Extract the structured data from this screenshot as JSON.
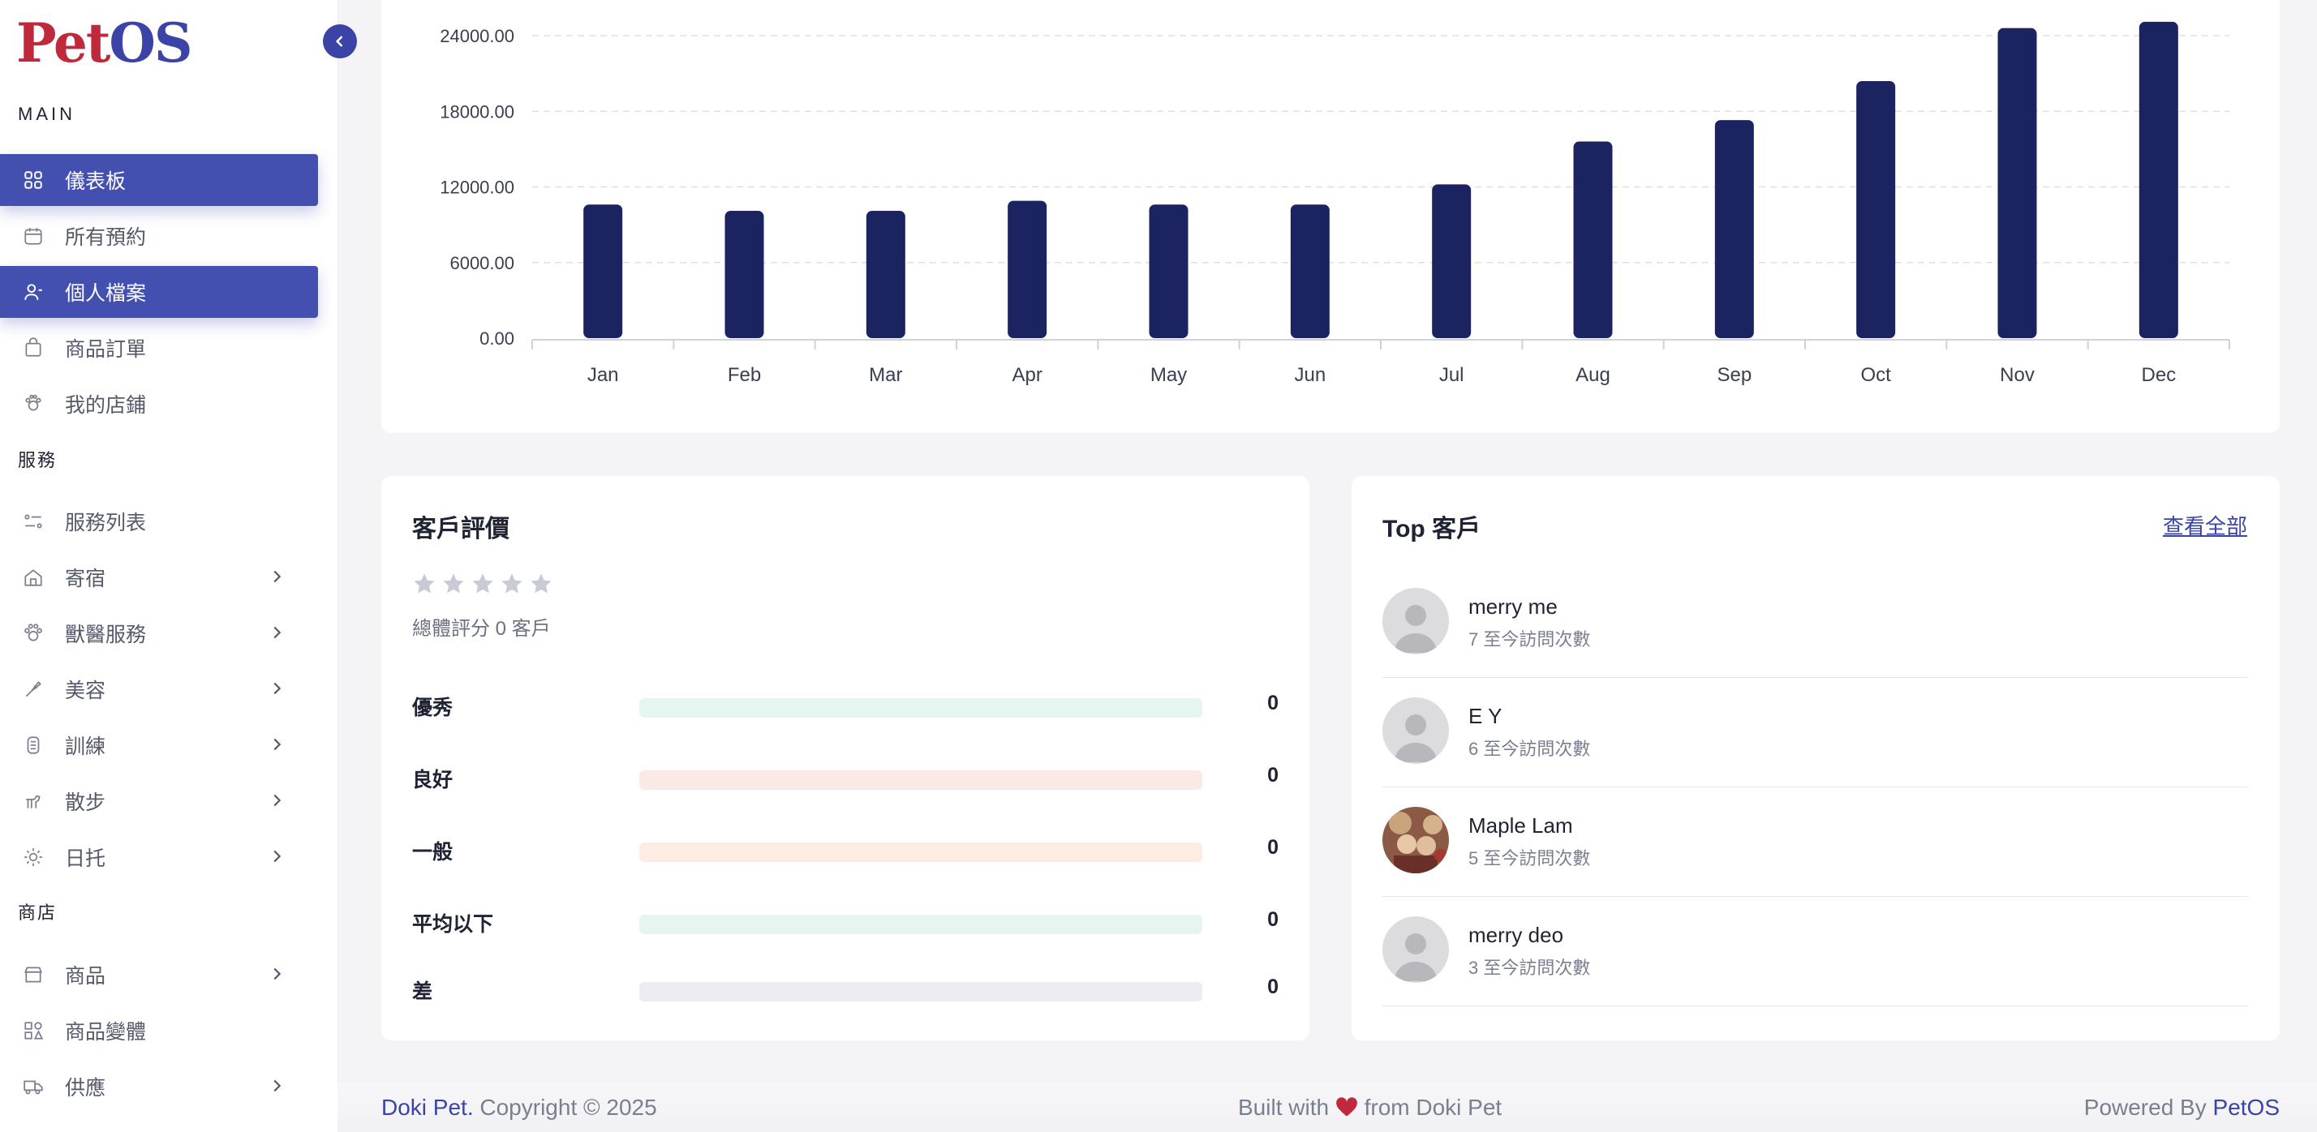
{
  "brand": {
    "logo_pet": "Pet",
    "logo_os": "OS"
  },
  "colors": {
    "accent": "#3b44a6",
    "active_nav": "#4350b0",
    "bar": "#1b2360",
    "heart": "#c0283b"
  },
  "sidebar": {
    "main_label": "MAIN",
    "services_label": "服務",
    "shop_label": "商店",
    "items": [
      {
        "label": "儀表板",
        "icon": "dashboard-grid-icon",
        "active": true
      },
      {
        "label": "所有預約",
        "icon": "calendar-icon",
        "active": false
      },
      {
        "label": "個人檔案",
        "icon": "user-icon",
        "active": true
      },
      {
        "label": "商品訂單",
        "icon": "shopping-bag-icon",
        "active": false
      },
      {
        "label": "我的店鋪",
        "icon": "paw-icon",
        "active": false
      },
      {
        "label": "服務列表",
        "icon": "service-list-icon",
        "active": false
      },
      {
        "label": "寄宿",
        "icon": "home-icon",
        "active": false
      },
      {
        "label": "獸醫服務",
        "icon": "vet-icon",
        "active": false
      },
      {
        "label": "美容",
        "icon": "grooming-icon",
        "active": false
      },
      {
        "label": "訓練",
        "icon": "training-icon",
        "active": false
      },
      {
        "label": "散步",
        "icon": "walking-dog-icon",
        "active": false
      },
      {
        "label": "日托",
        "icon": "daycare-icon",
        "active": false
      },
      {
        "label": "商品",
        "icon": "store-icon",
        "active": false
      },
      {
        "label": "商品變體",
        "icon": "variants-icon",
        "active": false
      },
      {
        "label": "供應",
        "icon": "truck-icon",
        "active": false
      }
    ]
  },
  "chart_data": {
    "type": "bar",
    "categories": [
      "Jan",
      "Feb",
      "Mar",
      "Apr",
      "May",
      "Jun",
      "Jul",
      "Aug",
      "Sep",
      "Oct",
      "Nov",
      "Dec"
    ],
    "values": [
      10600,
      10100,
      10100,
      10900,
      10600,
      10600,
      12200,
      15600,
      17300,
      20400,
      24600,
      25100
    ],
    "yticks": [
      "0.00",
      "6000.00",
      "12000.00",
      "18000.00",
      "24000.00"
    ],
    "ylim": [
      0,
      24000
    ],
    "title": "",
    "xlabel": "",
    "ylabel": ""
  },
  "reviews": {
    "title": "客戶評價",
    "summary": "總體評分 0 客戶",
    "stars_filled": 0,
    "rows": [
      {
        "label": "優秀",
        "count": "0",
        "color": "#e7f5f0"
      },
      {
        "label": "良好",
        "count": "0",
        "color": "#fbe9e6"
      },
      {
        "label": "一般",
        "count": "0",
        "color": "#fcece4"
      },
      {
        "label": "平均以下",
        "count": "0",
        "color": "#e7f5f0"
      },
      {
        "label": "差",
        "count": "0",
        "color": "#ececf3"
      }
    ]
  },
  "top_customers": {
    "title": "Top 客戶",
    "view_all": "查看全部",
    "customers": [
      {
        "name": "merry me",
        "visits": "7 至今訪問次數"
      },
      {
        "name": "E Y",
        "visits": "6 至今訪問次數"
      },
      {
        "name": "Maple Lam",
        "visits": "5 至今訪問次數"
      },
      {
        "name": "merry deo",
        "visits": "3 至今訪問次數"
      }
    ]
  },
  "footer": {
    "brand": "Doki Pet.",
    "copyright": " Copyright © 2025",
    "built_prefix": "Built with ",
    "built_suffix": " from Doki Pet",
    "powered_prefix": "Powered By ",
    "powered_brand": "PetOS"
  }
}
